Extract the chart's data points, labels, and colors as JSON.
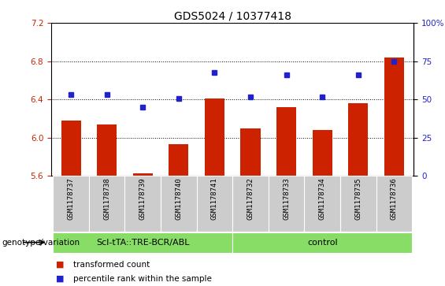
{
  "title": "GDS5024 / 10377418",
  "samples": [
    "GSM1178737",
    "GSM1178738",
    "GSM1178739",
    "GSM1178740",
    "GSM1178741",
    "GSM1178732",
    "GSM1178733",
    "GSM1178734",
    "GSM1178735",
    "GSM1178736"
  ],
  "bar_values": [
    6.18,
    6.14,
    5.625,
    5.93,
    6.41,
    6.1,
    6.32,
    6.08,
    6.36,
    6.84
  ],
  "dot_values": [
    6.45,
    6.45,
    6.315,
    6.41,
    6.685,
    6.425,
    6.655,
    6.425,
    6.66,
    6.795
  ],
  "ylim_left": [
    5.6,
    7.2
  ],
  "ylim_right": [
    0,
    100
  ],
  "yticks_left": [
    5.6,
    6.0,
    6.4,
    6.8,
    7.2
  ],
  "yticks_right": [
    0,
    25,
    50,
    75,
    100
  ],
  "ytick_labels_right": [
    "0",
    "25",
    "50",
    "75",
    "100%"
  ],
  "bar_color": "#cc2200",
  "dot_color": "#2222cc",
  "baseline": 5.6,
  "group1_label": "Scl-tTA::TRE-BCR/ABL",
  "group2_label": "control",
  "group1_count": 5,
  "group2_count": 5,
  "group_bg_color": "#88dd66",
  "sample_bg_color": "#cccccc",
  "legend_bar_label": "transformed count",
  "legend_dot_label": "percentile rank within the sample",
  "genotype_label": "genotype/variation",
  "grid_style": "dotted",
  "grid_color": "#000000",
  "title_fontsize": 10,
  "tick_fontsize": 7.5,
  "sample_fontsize": 6.5,
  "group_fontsize": 8,
  "legend_fontsize": 7.5,
  "genotype_fontsize": 7.5
}
